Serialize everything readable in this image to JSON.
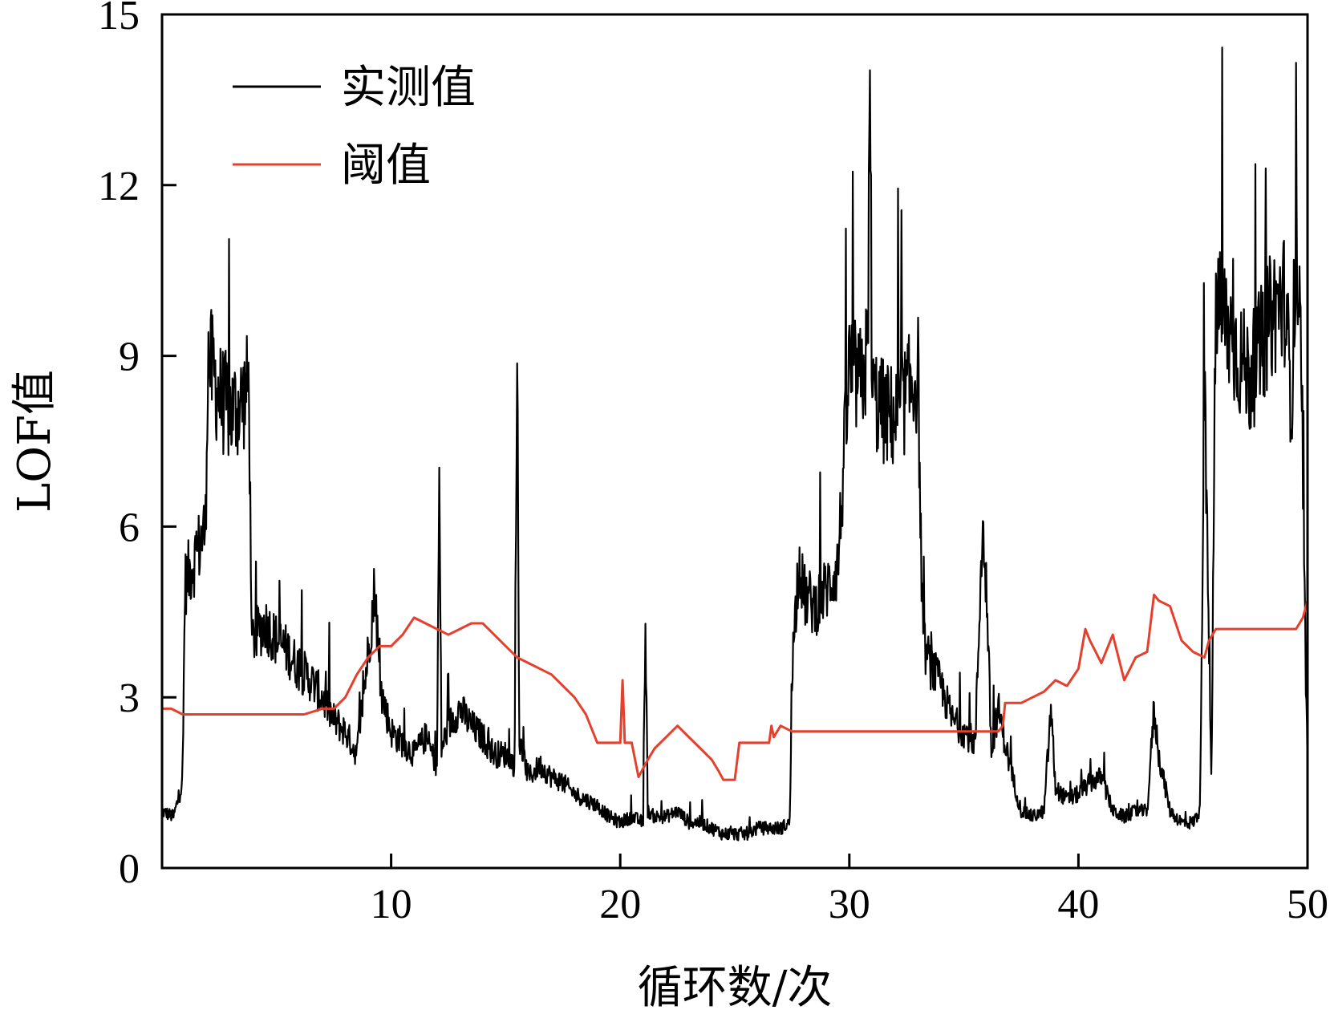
{
  "chart_data": {
    "type": "line",
    "xlabel": "循环数/次",
    "ylabel": "LOF值",
    "xlim": [
      0,
      50
    ],
    "ylim": [
      0,
      15
    ],
    "xticks": [
      10,
      20,
      30,
      40,
      50
    ],
    "yticks": [
      0,
      3,
      6,
      9,
      12,
      15
    ],
    "grid": false,
    "legend_position": "top-left",
    "series": [
      {
        "name": "实测值",
        "color": "#000000",
        "x": [
          0,
          0.5,
          0.9,
          1.0,
          1.5,
          1.9,
          2.0,
          2.5,
          3.0,
          3.5,
          3.8,
          3.9,
          4.5,
          5.0,
          5.5,
          6.0,
          6.5,
          7.0,
          7.5,
          8.0,
          8.5,
          9.0,
          9.3,
          9.5,
          10.0,
          10.5,
          11.0,
          11.5,
          12.0,
          12.1,
          12.2,
          12.5,
          13.0,
          13.5,
          14.0,
          14.5,
          15.0,
          15.4,
          15.5,
          15.6,
          16.0,
          16.5,
          17.0,
          17.5,
          18.0,
          18.5,
          19.0,
          19.5,
          20.0,
          20.5,
          21.0,
          21.1,
          21.2,
          21.5,
          22.0,
          22.5,
          23.0,
          23.5,
          24.0,
          24.5,
          25.0,
          25.5,
          26.0,
          26.5,
          27.0,
          27.4,
          27.5,
          27.8,
          28.0,
          28.5,
          29.0,
          29.5,
          30.0,
          30.3,
          30.5,
          30.8,
          30.9,
          31.0,
          31.5,
          32.0,
          32.5,
          33.0,
          33.2,
          33.5,
          34.0,
          34.5,
          35.0,
          35.5,
          35.8,
          36.0,
          36.2,
          36.5,
          37.0,
          37.5,
          38.0,
          38.5,
          38.8,
          39.0,
          39.5,
          40.0,
          40.5,
          41.0,
          41.5,
          42.0,
          42.5,
          43.0,
          43.3,
          43.5,
          44.0,
          44.5,
          45.0,
          45.3,
          45.5,
          45.8,
          46.0,
          46.5,
          47.0,
          47.5,
          48.0,
          48.5,
          49.0,
          49.3,
          49.5,
          49.7,
          50.0
        ],
        "y": [
          1.0,
          0.9,
          1.5,
          5.0,
          5.5,
          6.0,
          9.0,
          8.3,
          8.0,
          8.2,
          8.5,
          4.0,
          4.3,
          4.0,
          3.8,
          3.5,
          3.3,
          3.0,
          2.6,
          2.4,
          2.0,
          3.8,
          5.0,
          3.2,
          2.4,
          2.2,
          2.0,
          2.3,
          1.8,
          6.8,
          2.1,
          2.5,
          2.8,
          2.5,
          2.3,
          2.0,
          2.0,
          1.8,
          9.0,
          2.2,
          1.6,
          1.8,
          1.6,
          1.5,
          1.3,
          1.2,
          1.1,
          0.9,
          0.8,
          0.9,
          0.8,
          4.5,
          1.0,
          0.9,
          0.9,
          1.0,
          0.8,
          0.8,
          0.7,
          0.6,
          0.6,
          0.6,
          0.7,
          0.7,
          0.7,
          0.8,
          3.5,
          5.5,
          4.8,
          4.6,
          4.9,
          5.3,
          8.8,
          8.6,
          8.5,
          9.0,
          13.8,
          8.3,
          8.0,
          7.9,
          8.3,
          8.7,
          4.0,
          3.6,
          3.2,
          2.6,
          2.4,
          2.2,
          6.0,
          4.8,
          2.0,
          2.8,
          1.8,
          1.0,
          0.9,
          1.0,
          2.8,
          1.4,
          1.2,
          1.3,
          1.5,
          1.6,
          1.0,
          0.9,
          1.0,
          1.0,
          2.8,
          2.0,
          1.0,
          0.8,
          0.8,
          1.0,
          8.5,
          1.5,
          10.0,
          9.5,
          9.0,
          8.6,
          9.2,
          9.8,
          10.0,
          8.2,
          11.0,
          9.0,
          1.5
        ],
        "noise": true
      },
      {
        "name": "阈值",
        "color": "#e5402d",
        "x": [
          0,
          0.4,
          0.9,
          1.0,
          2.0,
          3.0,
          4.0,
          5.0,
          6.0,
          6.2,
          7.0,
          7.5,
          8.0,
          8.5,
          9.0,
          9.5,
          10.0,
          10.5,
          11.0,
          11.5,
          12.0,
          12.5,
          13.0,
          13.5,
          14.0,
          14.5,
          15.0,
          15.5,
          16.0,
          16.5,
          17.0,
          17.5,
          18.0,
          18.5,
          19.0,
          19.5,
          20.0,
          20.1,
          20.2,
          20.5,
          20.8,
          21.2,
          21.5,
          22.0,
          22.5,
          23.0,
          23.5,
          24.0,
          24.3,
          24.5,
          25.0,
          25.2,
          25.5,
          26.0,
          26.5,
          26.6,
          26.7,
          27.0,
          27.5,
          28.0,
          29.0,
          30.0,
          31.0,
          32.0,
          33.0,
          34.0,
          35.0,
          36.0,
          36.5,
          36.7,
          36.8,
          37.0,
          37.5,
          38.0,
          38.5,
          39.0,
          39.5,
          40.0,
          40.3,
          40.5,
          41.0,
          41.5,
          42.0,
          42.5,
          43.0,
          43.3,
          43.5,
          44.0,
          44.5,
          45.0,
          45.5,
          45.7,
          46.0,
          47.0,
          48.0,
          49.0,
          49.5,
          49.8,
          50.0
        ],
        "y": [
          2.8,
          2.8,
          2.7,
          2.7,
          2.7,
          2.7,
          2.7,
          2.7,
          2.7,
          2.7,
          2.8,
          2.8,
          3.0,
          3.4,
          3.7,
          3.9,
          3.9,
          4.1,
          4.4,
          4.3,
          4.2,
          4.1,
          4.2,
          4.3,
          4.3,
          4.1,
          3.9,
          3.7,
          3.6,
          3.5,
          3.4,
          3.2,
          3.0,
          2.7,
          2.2,
          2.2,
          2.2,
          3.3,
          2.2,
          2.2,
          1.6,
          1.9,
          2.1,
          2.3,
          2.5,
          2.3,
          2.1,
          1.9,
          1.7,
          1.55,
          1.55,
          2.2,
          2.2,
          2.2,
          2.2,
          2.5,
          2.3,
          2.5,
          2.4,
          2.4,
          2.4,
          2.4,
          2.4,
          2.4,
          2.4,
          2.4,
          2.4,
          2.4,
          2.4,
          2.5,
          2.9,
          2.9,
          2.9,
          3.0,
          3.1,
          3.3,
          3.2,
          3.5,
          4.2,
          4.0,
          3.6,
          4.1,
          3.3,
          3.7,
          3.8,
          4.8,
          4.7,
          4.6,
          4.0,
          3.8,
          3.7,
          4.0,
          4.2,
          4.2,
          4.2,
          4.2,
          4.2,
          4.4,
          4.7
        ],
        "noise": false
      }
    ]
  }
}
